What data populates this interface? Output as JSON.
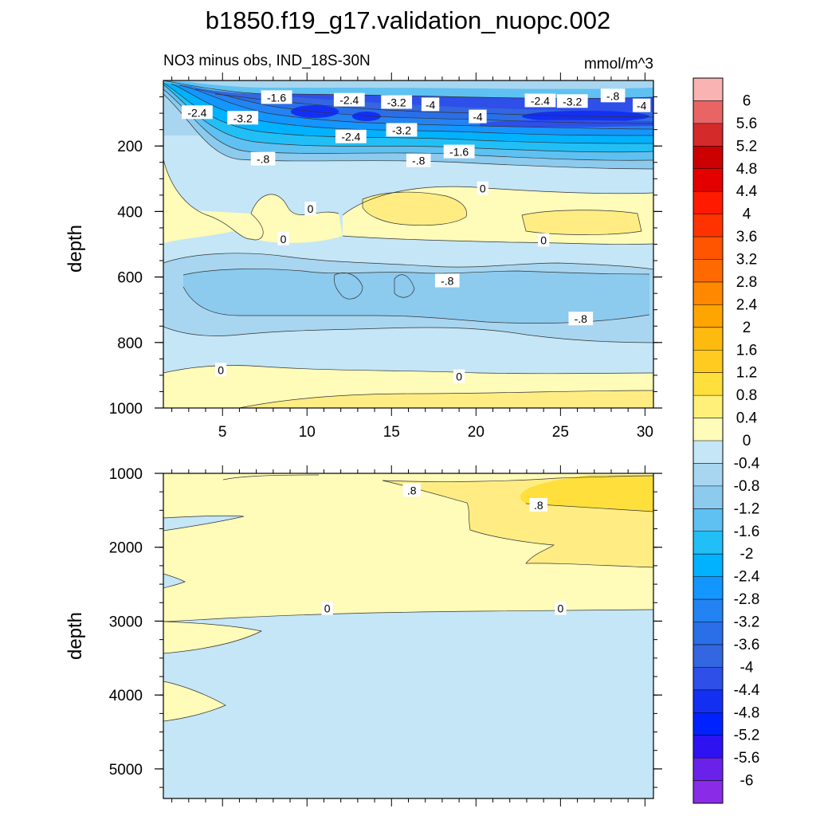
{
  "figure": {
    "title": "b1850.f19_g17.validation_nuopc.002",
    "subtitle_left": "NO3 minus obs, IND_18S-30N",
    "subtitle_right": "mmol/m^3"
  },
  "colorbar": {
    "labels": [
      "6",
      "5.6",
      "5.2",
      "4.8",
      "4.4",
      "4",
      "3.6",
      "3.2",
      "2.8",
      "2.4",
      "2",
      "1.6",
      "1.2",
      "0.8",
      "0.4",
      "0",
      "-0.4",
      "-0.8",
      "-1.2",
      "-1.6",
      "-2",
      "-2.4",
      "-2.8",
      "-3.2",
      "-3.6",
      "-4",
      "-4.4",
      "-4.8",
      "-5.2",
      "-5.6",
      "-6"
    ],
    "colors": [
      "#f9b3b3",
      "#e96565",
      "#d42a2a",
      "#cc0000",
      "#e50000",
      "#ff1a00",
      "#ff3300",
      "#ff5500",
      "#ff6a00",
      "#ff8800",
      "#ffa500",
      "#ffba10",
      "#ffcb20",
      "#ffdf3c",
      "#fff07a",
      "#fffbb8",
      "#c4e6f6",
      "#a8d6f0",
      "#8ccaee",
      "#5ec1f2",
      "#22bff6",
      "#00b2ff",
      "#1396ff",
      "#2383f2",
      "#2a6fe8",
      "#3366e0",
      "#2e4fe8",
      "#1330f2",
      "#0022ff",
      "#2e12f2",
      "#6a22ea",
      "#8a2be8"
    ]
  },
  "chart_data": [
    {
      "type": "contour",
      "panel": "upper",
      "xlabel": "",
      "ylabel": "depth",
      "xlim": [
        1.5,
        30.5
      ],
      "ylim": [
        1000,
        0
      ],
      "xticks": [
        "5",
        "10",
        "15",
        "20",
        "25",
        "30"
      ],
      "yticks": [
        "200",
        "400",
        "600",
        "800",
        "1000"
      ],
      "units": "mmol/m^3",
      "contour_labels": [
        {
          "text": "-1.6",
          "x": 8.2,
          "y": 52
        },
        {
          "text": "-2.4",
          "x": 12.5,
          "y": 60
        },
        {
          "text": "-3.2",
          "x": 15.3,
          "y": 67
        },
        {
          "text": "-4",
          "x": 17.3,
          "y": 74
        },
        {
          "text": "-2.4",
          "x": 23.8,
          "y": 62
        },
        {
          "text": "-3.2",
          "x": 25.7,
          "y": 64
        },
        {
          "text": "-.8",
          "x": 28.1,
          "y": 47
        },
        {
          "text": "-4",
          "x": 29.8,
          "y": 77
        },
        {
          "text": "-2.4",
          "x": 3.5,
          "y": 98
        },
        {
          "text": "-3.2",
          "x": 6.2,
          "y": 115
        },
        {
          "text": "-4",
          "x": 20.1,
          "y": 111
        },
        {
          "text": "-3.2",
          "x": 15.6,
          "y": 152
        },
        {
          "text": "-2.4",
          "x": 12.6,
          "y": 172
        },
        {
          "text": "-1.6",
          "x": 19.0,
          "y": 218
        },
        {
          "text": "-.8",
          "x": 7.4,
          "y": 240
        },
        {
          "text": "-.8",
          "x": 16.6,
          "y": 245
        },
        {
          "text": "0",
          "x": 20.4,
          "y": 330
        },
        {
          "text": "0",
          "x": 10.2,
          "y": 392
        },
        {
          "text": "0",
          "x": 8.6,
          "y": 484
        },
        {
          "text": "0",
          "x": 24.0,
          "y": 488
        },
        {
          "text": "-.8",
          "x": 18.3,
          "y": 612
        },
        {
          "text": "-.8",
          "x": 26.2,
          "y": 728
        },
        {
          "text": "0",
          "x": 4.9,
          "y": 884
        },
        {
          "text": "0",
          "x": 19.0,
          "y": 904
        }
      ]
    },
    {
      "type": "contour",
      "panel": "lower",
      "xlabel": "",
      "ylabel": "depth",
      "xlim": [
        1.5,
        30.5
      ],
      "ylim": [
        5400,
        1000
      ],
      "xticks": [],
      "yticks": [
        "1000",
        "2000",
        "3000",
        "4000",
        "5000"
      ],
      "units": "mmol/m^3",
      "contour_labels": [
        {
          "text": ".8",
          "x": 16.2,
          "y": 1230
        },
        {
          "text": ".8",
          "x": 23.7,
          "y": 1430
        },
        {
          "text": "0",
          "x": 11.2,
          "y": 2830
        },
        {
          "text": "0",
          "x": 25.0,
          "y": 2830
        }
      ]
    }
  ]
}
